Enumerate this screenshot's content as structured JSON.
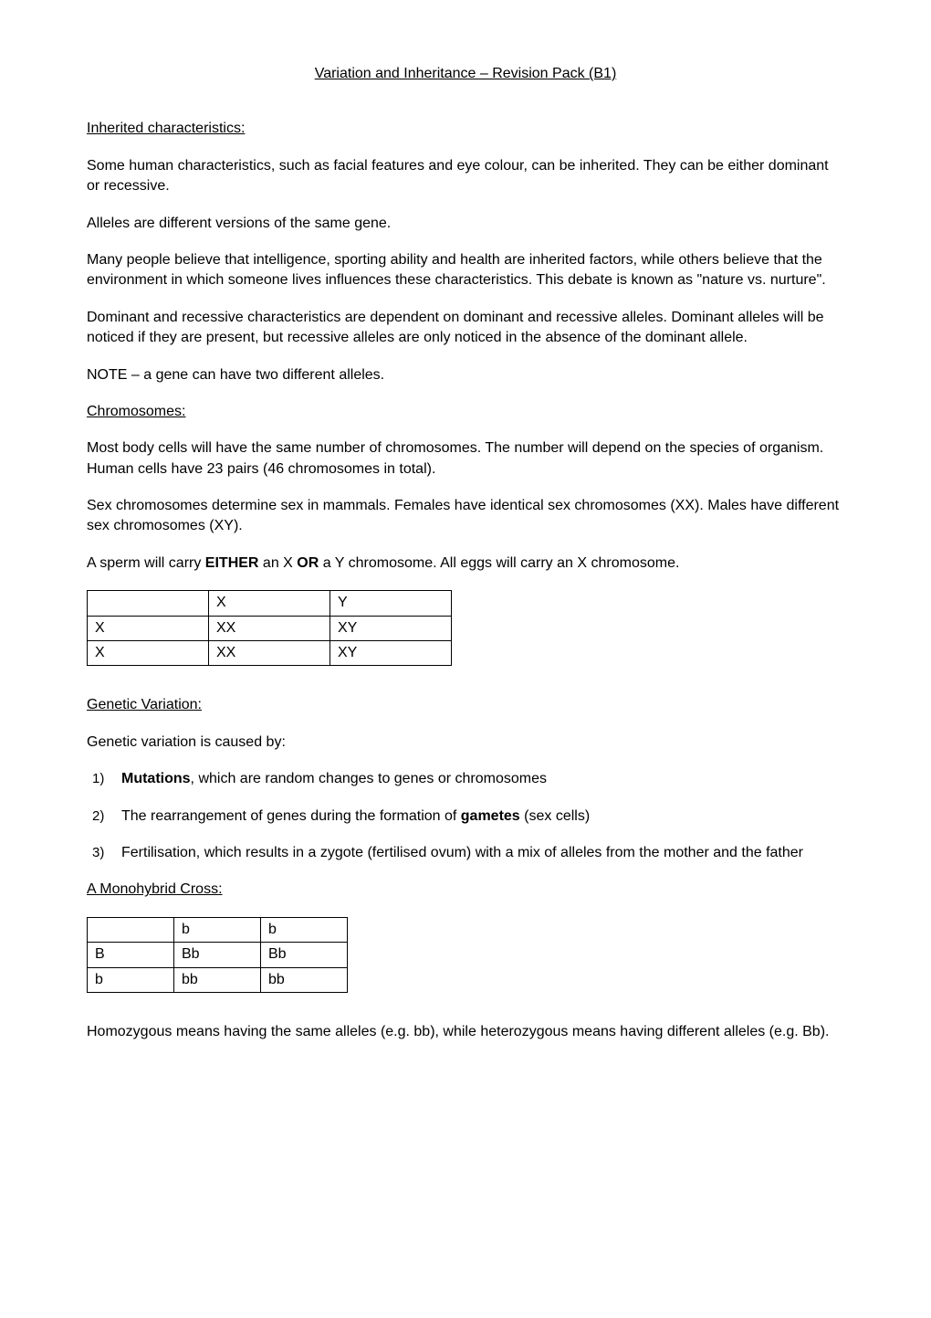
{
  "title": "Variation and Inheritance – Revision Pack (B1)",
  "inherited": {
    "heading": "Inherited characteristics:",
    "p1": "Some human characteristics, such as facial features and eye colour, can be inherited. They can be either dominant or recessive.",
    "p2": "Alleles are different versions of the same gene.",
    "p3": "Many people believe that intelligence, sporting ability and health are inherited factors, while others believe that the environment in which someone lives influences these characteristics. This debate is known as \"nature vs. nurture\".",
    "p4": "Dominant and recessive characteristics are dependent on dominant and recessive alleles. Dominant alleles will be noticed if they are present, but recessive alleles are only noticed in the absence of the dominant allele.",
    "p5": "NOTE – a gene can have two different alleles."
  },
  "chromosomes": {
    "heading": "Chromosomes:",
    "p1": "Most body cells will have the same number of chromosomes. The number will depend on the species of organism. Human cells have 23 pairs (46 chromosomes in total).",
    "p2": "Sex chromosomes determine sex in mammals. Females have identical sex chromosomes (XX). Males have different sex chromosomes (XY).",
    "p3_pre": "A sperm will carry ",
    "p3_b1": "EITHER",
    "p3_mid": " an X ",
    "p3_b2": "OR",
    "p3_post": " a Y chromosome. All eggs will carry an X chromosome.",
    "table": {
      "r0c0": "",
      "r0c1": "X",
      "r0c2": "Y",
      "r1c0": "X",
      "r1c1": "XX",
      "r1c2": "XY",
      "r2c0": "X",
      "r2c1": "XX",
      "r2c2": "XY"
    }
  },
  "variation": {
    "heading": "Genetic Variation:",
    "p1": "Genetic variation is caused by:",
    "list": {
      "n1": "1)",
      "i1_b": "Mutations",
      "i1_post": ", which are random changes to genes or chromosomes",
      "n2": "2)",
      "i2_pre": "The rearrangement of genes during the formation of ",
      "i2_b": "gametes",
      "i2_post": " (sex cells)",
      "n3": "3)",
      "i3": "Fertilisation, which results in a zygote (fertilised ovum) with a mix of alleles from the mother and the father"
    }
  },
  "monohybrid": {
    "heading": "A Monohybrid Cross:",
    "table": {
      "r0c0": "",
      "r0c1": "b",
      "r0c2": "b",
      "r1c0": "B",
      "r1c1": "Bb",
      "r1c2": "Bb",
      "r2c0": "b",
      "r2c1": "bb",
      "r2c2": "bb"
    },
    "p1": "Homozygous means having the same alleles (e.g. bb), while heterozygous means having different alleles (e.g. Bb)."
  },
  "colors": {
    "text": "#000000",
    "background": "#ffffff",
    "border": "#000000"
  },
  "typography": {
    "font_family": "Arial",
    "body_fontsize": 16,
    "title_fontsize": 16
  }
}
